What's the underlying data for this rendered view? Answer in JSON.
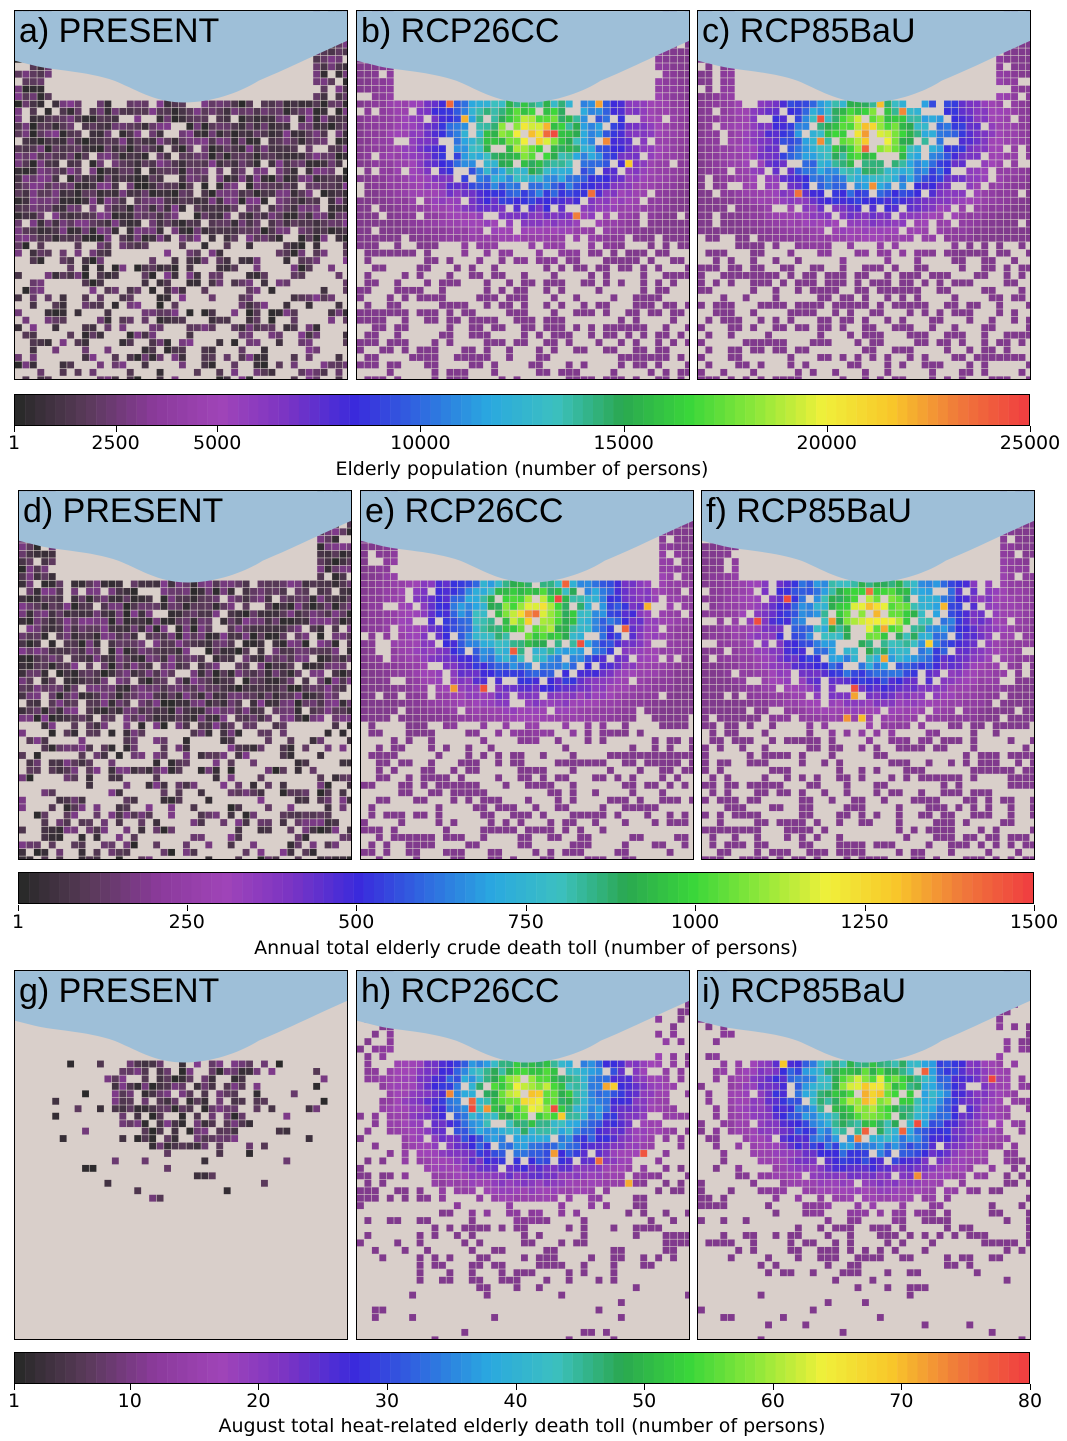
{
  "colormap": [
    "#2a2a2a",
    "#5a3a5a",
    "#8a3a9a",
    "#a044b8",
    "#7a34c4",
    "#3a2adc",
    "#2f6ae0",
    "#2aa8e0",
    "#3cc0c0",
    "#2aa850",
    "#3ad63a",
    "#8ee83a",
    "#f0f03a",
    "#f8c82a",
    "#f07a3a",
    "#f04040"
  ],
  "colors": {
    "sea": "#9ebfd8",
    "land": "#d9cfca",
    "border": "#000000"
  },
  "rows": [
    {
      "panels": [
        {
          "label": "a) PRESENT",
          "scenario": "present"
        },
        {
          "label": "b) RCP26CC",
          "scenario": "rcp26"
        },
        {
          "label": "c) RCP85BaU",
          "scenario": "rcp85"
        }
      ],
      "colorbar": {
        "ticks": [
          "1",
          "2500",
          "5000",
          "10000",
          "15000",
          "20000",
          "25000"
        ],
        "tick_values": [
          1,
          2500,
          5000,
          10000,
          15000,
          20000,
          25000
        ],
        "vmin": 1,
        "vmax": 25000,
        "label": "Elderly population (number of persons)"
      }
    },
    {
      "panels": [
        {
          "label": "d) PRESENT",
          "scenario": "present"
        },
        {
          "label": "e) RCP26CC",
          "scenario": "rcp26"
        },
        {
          "label": "f) RCP85BaU",
          "scenario": "rcp85"
        }
      ],
      "colorbar": {
        "ticks": [
          "1",
          "250",
          "500",
          "750",
          "1000",
          "1250",
          "1500"
        ],
        "tick_values": [
          1,
          250,
          500,
          750,
          1000,
          1250,
          1500
        ],
        "vmin": 1,
        "vmax": 1500,
        "label": "Annual total elderly crude death toll (number of persons)"
      }
    },
    {
      "panels": [
        {
          "label": "g) PRESENT",
          "scenario": "present_sparse"
        },
        {
          "label": "h) RCP26CC",
          "scenario": "rcp26_sparse"
        },
        {
          "label": "i) RCP85BaU",
          "scenario": "rcp85_sparse"
        }
      ],
      "colorbar": {
        "ticks": [
          "1",
          "10",
          "20",
          "30",
          "40",
          "50",
          "60",
          "70",
          "80"
        ],
        "tick_values": [
          1,
          10,
          20,
          30,
          40,
          50,
          60,
          70,
          80
        ],
        "vmin": 1,
        "vmax": 80,
        "label": "August total heat-related elderly death toll (number of persons)"
      }
    }
  ]
}
